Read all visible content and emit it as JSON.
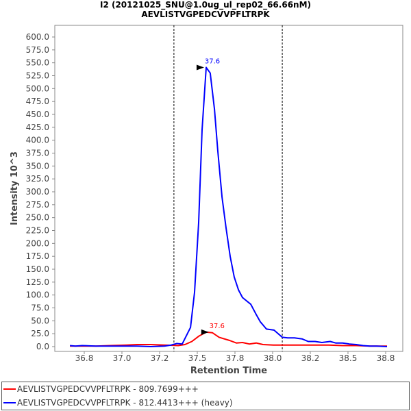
{
  "title": {
    "line1": "I2 (20121025_SNU@1.0ug_ul_rep02_66.66nM)",
    "line2": "AEVLISTVGPEDCVVPFLTRPK"
  },
  "chart_data": {
    "type": "line",
    "xlabel": "Retention Time",
    "ylabel": "Intensity 10^3",
    "xlim": [
      36.55,
      38.9
    ],
    "ylim": [
      0,
      620
    ],
    "xticks": [
      36.75,
      37.0,
      37.25,
      37.5,
      37.75,
      38.0,
      38.25,
      38.5,
      38.75
    ],
    "xtick_labels": [
      "36.8",
      "37.0",
      "37.2",
      "37.5",
      "37.8",
      "38.0",
      "38.2",
      "38.5",
      "38.8"
    ],
    "ytick_step": 25,
    "ytick_max": 600,
    "boundaries": [
      37.345,
      38.064
    ],
    "legend_position": "bottom",
    "series": [
      {
        "name": "AEVLISTVGPEDCVVPFLTRPK - 809.7699+++",
        "color": "#ff0000",
        "peak_label": "37.6",
        "peak": [
          37.59,
          28
        ],
        "x": [
          36.655,
          36.736,
          36.827,
          36.918,
          37.032,
          37.1,
          37.191,
          37.282,
          37.373,
          37.418,
          37.464,
          37.509,
          37.559,
          37.6,
          37.645,
          37.714,
          37.759,
          37.8,
          37.845,
          37.891,
          37.936,
          38.005,
          38.1,
          38.191,
          38.282,
          38.373,
          38.464,
          38.555,
          38.645,
          38.759
        ],
        "y": [
          1,
          1,
          1,
          2,
          3,
          4,
          4,
          3,
          2,
          4,
          10,
          20,
          28,
          27,
          18,
          12,
          7,
          8,
          5,
          7,
          4,
          3,
          3,
          3,
          3,
          3,
          2,
          2,
          1,
          1
        ]
      },
      {
        "name": "AEVLISTVGPEDCVVPFLTRPK - 812.4413+++ (heavy)",
        "color": "#0000ff",
        "peak_label": "37.6",
        "peak": [
          37.559,
          541
        ],
        "x": [
          36.655,
          36.691,
          36.736,
          36.827,
          36.918,
          37.1,
          37.191,
          37.282,
          37.327,
          37.364,
          37.4,
          37.455,
          37.482,
          37.509,
          37.532,
          37.559,
          37.586,
          37.614,
          37.636,
          37.664,
          37.691,
          37.718,
          37.745,
          37.773,
          37.8,
          37.855,
          37.895,
          37.918,
          37.959,
          38.009,
          38.064,
          38.1,
          38.145,
          38.195,
          38.236,
          38.282,
          38.327,
          38.382,
          38.418,
          38.464,
          38.509,
          38.555,
          38.6,
          38.645,
          38.691,
          38.759
        ],
        "y": [
          2,
          1,
          2,
          1,
          1,
          1,
          0,
          1,
          3,
          6,
          5,
          37,
          105,
          240,
          420,
          541,
          530,
          460,
          380,
          290,
          230,
          175,
          135,
          110,
          95,
          82,
          60,
          48,
          34,
          32,
          18,
          17,
          17,
          15,
          10,
          10,
          8,
          10,
          7,
          7,
          5,
          4,
          2,
          1,
          1,
          0
        ]
      }
    ]
  }
}
